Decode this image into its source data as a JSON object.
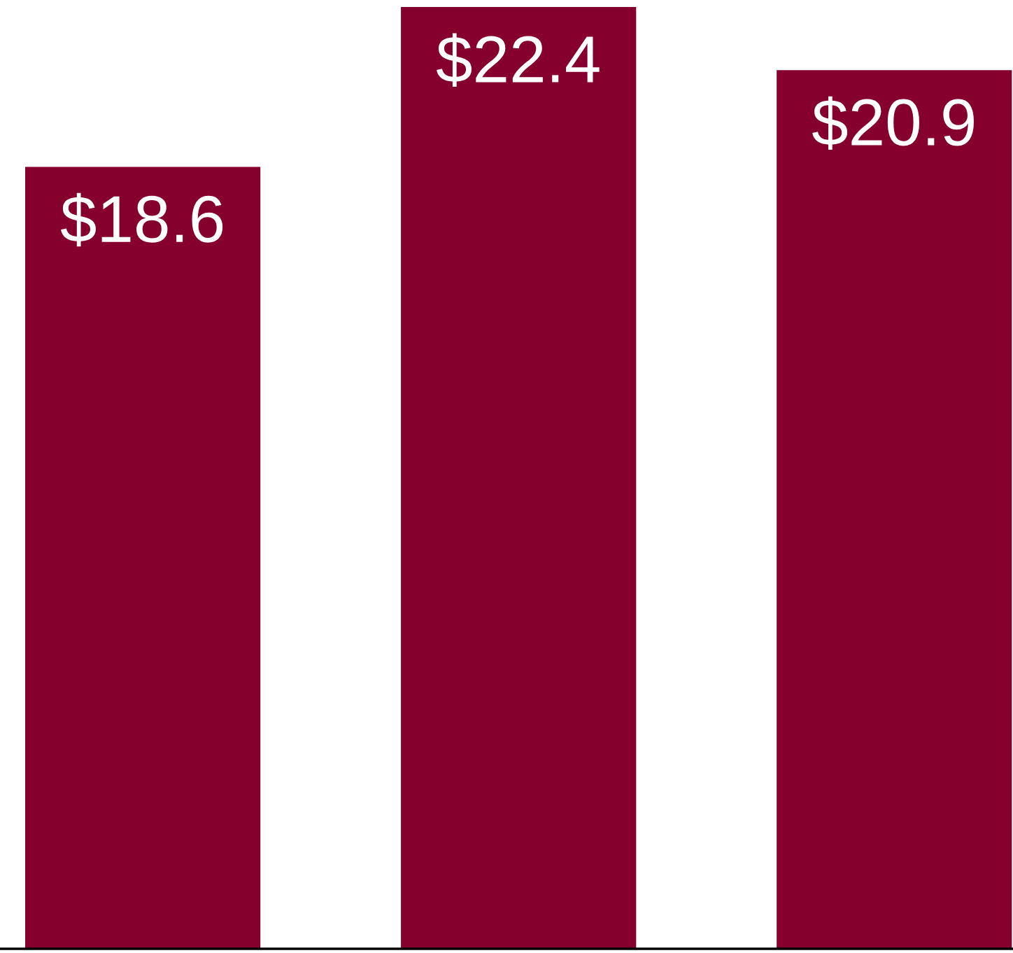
{
  "chart_data": {
    "type": "bar",
    "categories": [
      null,
      null,
      null
    ],
    "values": [
      18.6,
      22.4,
      20.9
    ],
    "value_labels": [
      "$18.6",
      "$22.4",
      "$20.9"
    ],
    "color": "#86002e",
    "grid": false,
    "legend": false
  }
}
